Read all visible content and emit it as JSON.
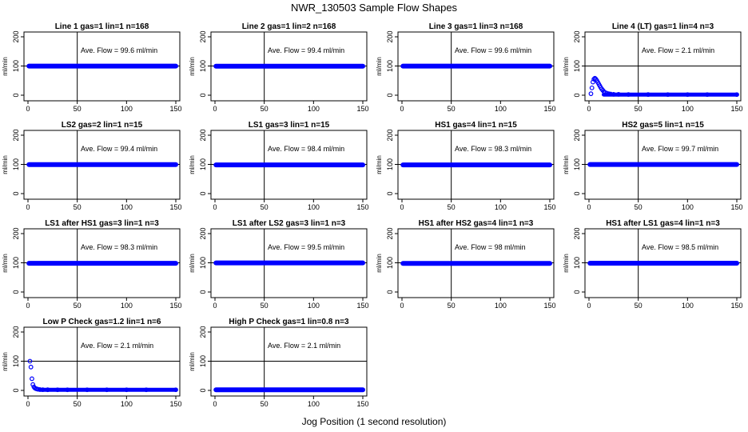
{
  "figure": {
    "title": "NWR_130503  Sample Flow Shapes",
    "xlabel": "Jog Position (1 second resolution)"
  },
  "colors": {
    "points": "#0000ff",
    "axes": "#000000",
    "background": "#ffffff"
  },
  "chart_data": [
    {
      "type": "scatter",
      "title": "Line 1 gas=1 lin=1 n=168",
      "ylabel": "ml/min",
      "annotation": "Ave. Flow = 99.6  ml/min",
      "xlim": [
        0,
        150
      ],
      "ylim": [
        0,
        200
      ],
      "xticks": [
        0,
        50,
        100,
        150
      ],
      "yticks": [
        0,
        100,
        200
      ],
      "vline_x": 50,
      "hline_y": 100,
      "series": [
        {
          "x": [
            1,
            150
          ],
          "y": [
            99.6,
            99.6
          ],
          "kind": "flat"
        }
      ]
    },
    {
      "type": "scatter",
      "title": "Line 2 gas=1 lin=2 n=168",
      "ylabel": "ml/min",
      "annotation": "Ave. Flow = 99.4  ml/min",
      "xlim": [
        0,
        150
      ],
      "ylim": [
        0,
        200
      ],
      "xticks": [
        0,
        50,
        100,
        150
      ],
      "yticks": [
        0,
        100,
        200
      ],
      "vline_x": 50,
      "hline_y": 100,
      "series": [
        {
          "x": [
            1,
            150
          ],
          "y": [
            99.4,
            99.4
          ],
          "kind": "flat"
        }
      ]
    },
    {
      "type": "scatter",
      "title": "Line 3 gas=1 lin=3 n=168",
      "ylabel": "ml/min",
      "annotation": "Ave. Flow = 99.6  ml/min",
      "xlim": [
        0,
        150
      ],
      "ylim": [
        0,
        200
      ],
      "xticks": [
        0,
        50,
        100,
        150
      ],
      "yticks": [
        0,
        100,
        200
      ],
      "vline_x": 50,
      "hline_y": 100,
      "series": [
        {
          "x": [
            1,
            150
          ],
          "y": [
            99.6,
            99.6
          ],
          "kind": "flat"
        }
      ]
    },
    {
      "type": "scatter",
      "title": "Line 4 (LT) gas=1 lin=4 n=3",
      "ylabel": "ml/min",
      "annotation": "Ave. Flow = 2.1  ml/min",
      "xlim": [
        0,
        150
      ],
      "ylim": [
        0,
        200
      ],
      "xticks": [
        0,
        50,
        100,
        150
      ],
      "yticks": [
        0,
        100,
        200
      ],
      "vline_x": 50,
      "hline_y": 100,
      "series": [
        {
          "x": [
            2,
            3,
            4,
            5,
            6,
            7,
            8,
            9,
            10,
            11,
            12,
            13,
            14,
            15,
            16,
            18,
            20,
            22,
            25,
            30,
            40,
            60,
            80,
            100,
            120,
            150
          ],
          "y": [
            5,
            25,
            45,
            55,
            58,
            55,
            50,
            44,
            38,
            32,
            26,
            21,
            17,
            13,
            10,
            7,
            5,
            4,
            3,
            3,
            2.5,
            2.2,
            2.1,
            2.1,
            2.1,
            2.1
          ],
          "kind": "points"
        }
      ]
    },
    {
      "type": "scatter",
      "title": "LS2 gas=2 lin=1 n=15",
      "ylabel": "ml/min",
      "annotation": "Ave. Flow = 99.4  ml/min",
      "xlim": [
        0,
        150
      ],
      "ylim": [
        0,
        200
      ],
      "xticks": [
        0,
        50,
        100,
        150
      ],
      "yticks": [
        0,
        100,
        200
      ],
      "vline_x": 50,
      "hline_y": 100,
      "series": [
        {
          "x": [
            1,
            150
          ],
          "y": [
            99.4,
            99.4
          ],
          "kind": "flat"
        }
      ]
    },
    {
      "type": "scatter",
      "title": "LS1 gas=3 lin=1 n=15",
      "ylabel": "ml/min",
      "annotation": "Ave. Flow = 98.4  ml/min",
      "xlim": [
        0,
        150
      ],
      "ylim": [
        0,
        200
      ],
      "xticks": [
        0,
        50,
        100,
        150
      ],
      "yticks": [
        0,
        100,
        200
      ],
      "vline_x": 50,
      "hline_y": 100,
      "series": [
        {
          "x": [
            1,
            150
          ],
          "y": [
            98.4,
            98.4
          ],
          "kind": "flat"
        }
      ]
    },
    {
      "type": "scatter",
      "title": "HS1 gas=4 lin=1 n=15",
      "ylabel": "ml/min",
      "annotation": "Ave. Flow = 98.3  ml/min",
      "xlim": [
        0,
        150
      ],
      "ylim": [
        0,
        200
      ],
      "xticks": [
        0,
        50,
        100,
        150
      ],
      "yticks": [
        0,
        100,
        200
      ],
      "vline_x": 50,
      "hline_y": 100,
      "series": [
        {
          "x": [
            1,
            150
          ],
          "y": [
            98.3,
            98.3
          ],
          "kind": "flat"
        }
      ]
    },
    {
      "type": "scatter",
      "title": "HS2 gas=5 lin=1 n=15",
      "ylabel": "ml/min",
      "annotation": "Ave. Flow = 99.7  ml/min",
      "xlim": [
        0,
        150
      ],
      "ylim": [
        0,
        200
      ],
      "xticks": [
        0,
        50,
        100,
        150
      ],
      "yticks": [
        0,
        100,
        200
      ],
      "vline_x": 50,
      "hline_y": 100,
      "series": [
        {
          "x": [
            1,
            150
          ],
          "y": [
            99.7,
            99.7
          ],
          "kind": "flat"
        }
      ]
    },
    {
      "type": "scatter",
      "title": "LS1 after HS1 gas=3 lin=1 n=3",
      "ylabel": "ml/min",
      "annotation": "Ave. Flow = 98.3  ml/min",
      "xlim": [
        0,
        150
      ],
      "ylim": [
        0,
        200
      ],
      "xticks": [
        0,
        50,
        100,
        150
      ],
      "yticks": [
        0,
        100,
        200
      ],
      "vline_x": 50,
      "hline_y": 100,
      "series": [
        {
          "x": [
            1,
            150
          ],
          "y": [
            98.3,
            98.3
          ],
          "kind": "flat"
        }
      ]
    },
    {
      "type": "scatter",
      "title": "LS1 after LS2 gas=3 lin=1 n=3",
      "ylabel": "ml/min",
      "annotation": "Ave. Flow = 99.5  ml/min",
      "xlim": [
        0,
        150
      ],
      "ylim": [
        0,
        200
      ],
      "xticks": [
        0,
        50,
        100,
        150
      ],
      "yticks": [
        0,
        100,
        200
      ],
      "vline_x": 50,
      "hline_y": 100,
      "series": [
        {
          "x": [
            1,
            150
          ],
          "y": [
            99.5,
            99.5
          ],
          "kind": "flat"
        }
      ]
    },
    {
      "type": "scatter",
      "title": "HS1 after HS2 gas=4 lin=1 n=3",
      "ylabel": "ml/min",
      "annotation": "Ave. Flow = 98  ml/min",
      "xlim": [
        0,
        150
      ],
      "ylim": [
        0,
        200
      ],
      "xticks": [
        0,
        50,
        100,
        150
      ],
      "yticks": [
        0,
        100,
        200
      ],
      "vline_x": 50,
      "hline_y": 100,
      "series": [
        {
          "x": [
            1,
            150
          ],
          "y": [
            98,
            98
          ],
          "kind": "flat"
        }
      ]
    },
    {
      "type": "scatter",
      "title": "HS1 after LS1 gas=4 lin=1 n=3",
      "ylabel": "ml/min",
      "annotation": "Ave. Flow = 98.5  ml/min",
      "xlim": [
        0,
        150
      ],
      "ylim": [
        0,
        200
      ],
      "xticks": [
        0,
        50,
        100,
        150
      ],
      "yticks": [
        0,
        100,
        200
      ],
      "vline_x": 50,
      "hline_y": 100,
      "series": [
        {
          "x": [
            1,
            150
          ],
          "y": [
            98.5,
            98.5
          ],
          "kind": "flat"
        }
      ]
    },
    {
      "type": "scatter",
      "title": "Low P Check gas=1.2 lin=1 n=6",
      "ylabel": "ml/min",
      "annotation": "Ave. Flow = 2.1  ml/min",
      "xlim": [
        0,
        150
      ],
      "ylim": [
        0,
        200
      ],
      "xticks": [
        0,
        50,
        100,
        150
      ],
      "yticks": [
        0,
        100,
        200
      ],
      "vline_x": 50,
      "hline_y": 100,
      "series": [
        {
          "x": [
            2,
            3,
            4,
            5,
            6,
            7,
            8,
            9,
            10,
            12,
            15,
            20,
            30,
            40,
            60,
            80,
            100,
            120,
            150
          ],
          "y": [
            100,
            80,
            40,
            20,
            12,
            8,
            6,
            5,
            4,
            3,
            2.5,
            2.2,
            2.1,
            2.1,
            2.1,
            2.1,
            2.1,
            2.1,
            2.1
          ],
          "kind": "points"
        }
      ]
    },
    {
      "type": "scatter",
      "title": "High P Check gas=1 lin=0.8 n=3",
      "ylabel": "ml/min",
      "annotation": "Ave. Flow = 2.1  ml/min",
      "xlim": [
        0,
        150
      ],
      "ylim": [
        0,
        200
      ],
      "xticks": [
        0,
        50,
        100,
        150
      ],
      "yticks": [
        0,
        100,
        200
      ],
      "vline_x": 50,
      "hline_y": 100,
      "series": [
        {
          "x": [
            1,
            150
          ],
          "y": [
            2.1,
            2.1
          ],
          "kind": "flat"
        }
      ]
    }
  ]
}
